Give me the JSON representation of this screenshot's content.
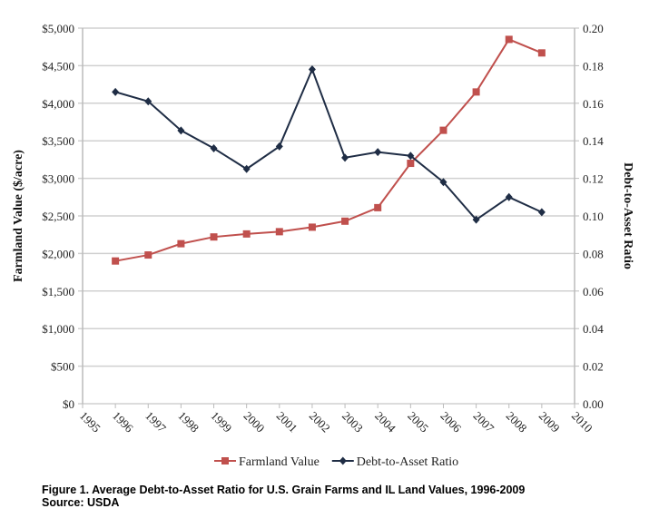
{
  "chart_data": {
    "type": "line",
    "title": "",
    "x": [
      1996,
      1997,
      1998,
      1999,
      2000,
      2001,
      2002,
      2003,
      2004,
      2005,
      2006,
      2007,
      2008,
      2009
    ],
    "xlim": [
      1995,
      2010
    ],
    "xticks": [
      "1995",
      "1996",
      "1997",
      "1998",
      "1999",
      "2000",
      "2001",
      "2002",
      "2003",
      "2004",
      "2005",
      "2006",
      "2007",
      "2008",
      "2009",
      "2010"
    ],
    "ylabel_left": "Farmland Value ($/acre)",
    "ylabel_right": "Debt-to-Asset Ratio",
    "ylim_left": [
      0,
      5000
    ],
    "ylim_right": [
      0,
      0.2
    ],
    "yticks_left": [
      "$0",
      "$500",
      "$1,000",
      "$1,500",
      "$2,000",
      "$2,500",
      "$3,000",
      "$3,500",
      "$4,000",
      "$4,500",
      "$5,000"
    ],
    "yticks_right": [
      "0.00",
      "0.02",
      "0.04",
      "0.06",
      "0.08",
      "0.10",
      "0.12",
      "0.14",
      "0.16",
      "0.18",
      "0.20"
    ],
    "grid": true,
    "legend_placement": "bottom",
    "series": [
      {
        "name": "Farmland Value",
        "axis": "left",
        "color": "#c0504d",
        "marker": "square",
        "values": [
          1900,
          1980,
          2130,
          2220,
          2260,
          2290,
          2350,
          2430,
          2610,
          3200,
          3640,
          4150,
          4850,
          4670
        ]
      },
      {
        "name": "Debt-to-Asset Ratio",
        "axis": "right",
        "color": "#1f2d45",
        "marker": "diamond",
        "values": [
          0.166,
          0.161,
          0.1455,
          0.136,
          0.125,
          0.137,
          0.178,
          0.131,
          0.134,
          0.132,
          0.118,
          0.098,
          0.11,
          0.102
        ]
      }
    ]
  },
  "caption": {
    "line1": "Figure 1. Average Debt-to-Asset Ratio for U.S. Grain Farms and IL Land Values, 1996-2009",
    "line2": "Source: USDA"
  }
}
